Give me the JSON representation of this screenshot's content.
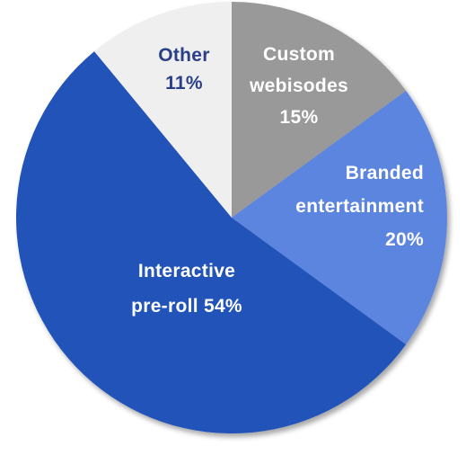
{
  "chart_data": {
    "type": "pie",
    "title": "",
    "start": "12 o'clock",
    "direction": "clockwise",
    "slices": [
      {
        "name": "Custom webisodes",
        "value": 15,
        "label_lines": [
          "Custom",
          "webisodes",
          "15%"
        ],
        "color": "#999999",
        "label_color": "#ffffff"
      },
      {
        "name": "Branded entertainment",
        "value": 20,
        "label_lines": [
          "Branded",
          "entertainment",
          "20%"
        ],
        "color": "#5b85e0",
        "label_color": "#ffffff"
      },
      {
        "name": "Interactive pre-roll",
        "value": 54,
        "label_lines": [
          "Interactive",
          "pre-roll 54%"
        ],
        "color": "#2353b8",
        "label_color": "#ffffff"
      },
      {
        "name": "Other",
        "value": 11,
        "label_lines": [
          "Other",
          "11%"
        ],
        "color": "#efefef",
        "label_color": "#2a3f86"
      }
    ]
  }
}
